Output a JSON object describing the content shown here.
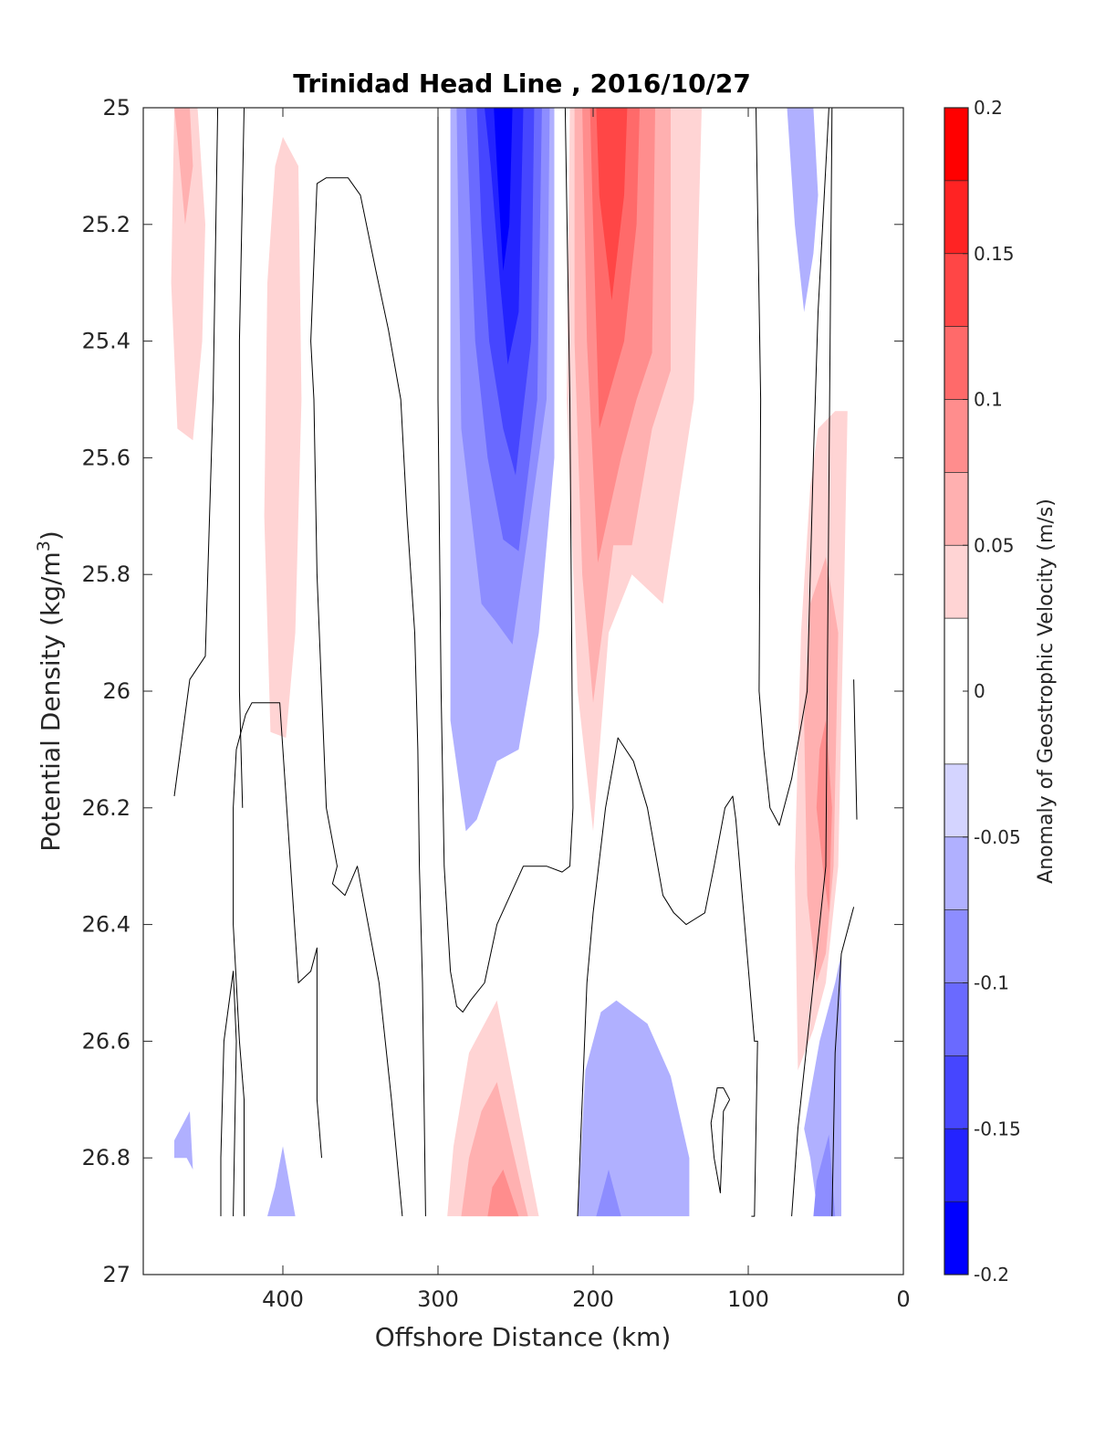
{
  "chart_data": {
    "type": "contourf",
    "title": "Trinidad Head Line , 2016/10/27",
    "xlabel": "Offshore Distance (km)",
    "ylabel_main": "Potential Density (kg/m",
    "ylabel_sup": "3",
    "ylabel_tail": ")",
    "xlim": [
      490,
      0
    ],
    "x_reversed": true,
    "ylim": [
      25,
      27
    ],
    "y_reversed": true,
    "x_ticks": [
      "400",
      "300",
      "200",
      "100",
      "0"
    ],
    "x_tick_values": [
      400,
      300,
      200,
      100,
      0
    ],
    "y_ticks": [
      "25",
      "25.2",
      "25.4",
      "25.6",
      "25.8",
      "26",
      "26.2",
      "26.4",
      "26.6",
      "26.8",
      "27"
    ],
    "y_tick_values": [
      25,
      25.2,
      25.4,
      25.6,
      25.8,
      26,
      26.2,
      26.4,
      26.6,
      26.8,
      27
    ],
    "colorbar": {
      "label": "Anomaly of Geostrophic Velocity (m/s)",
      "range": [
        -0.2,
        0.2
      ],
      "tick_labels": [
        "0.2",
        "0.15",
        "0.1",
        "0.05",
        "0",
        "-0.05",
        "-0.1",
        "-0.15",
        "-0.2"
      ],
      "tick_values": [
        0.2,
        0.15,
        0.1,
        0.05,
        0,
        -0.05,
        -0.1,
        -0.15,
        -0.2
      ],
      "levels": [
        -0.2,
        -0.175,
        -0.15,
        -0.125,
        -0.1,
        -0.075,
        -0.05,
        -0.025,
        0.025,
        0.05,
        0.075,
        0.1,
        0.125,
        0.15,
        0.175,
        0.2
      ],
      "colors": [
        "#0000ff",
        "#2323ff",
        "#4646ff",
        "#6a6aff",
        "#8d8dff",
        "#b0b0ff",
        "#d4d4ff",
        "#ffffff",
        "#ffd4d4",
        "#ffb0b0",
        "#ff8d8d",
        "#ff6a6a",
        "#ff4646",
        "#ff2323",
        "#ff0000"
      ]
    },
    "features": [
      {
        "kind": "filled",
        "level": 0.05,
        "x": [
          465,
          455,
          450,
          452,
          458,
          468,
          472,
          470
        ],
        "y": [
          25.0,
          25.0,
          25.2,
          25.4,
          25.57,
          25.55,
          25.3,
          25.0
        ]
      },
      {
        "kind": "filled",
        "level": 0.075,
        "x": [
          470,
          460,
          458,
          463,
          468
        ],
        "y": [
          25.0,
          25.0,
          25.1,
          25.2,
          25.05
        ]
      },
      {
        "kind": "filled",
        "level": 0.05,
        "x": [
          400,
          390,
          388,
          392,
          398,
          408,
          412,
          410,
          405
        ],
        "y": [
          25.05,
          25.1,
          25.5,
          25.9,
          26.08,
          26.07,
          25.7,
          25.3,
          25.1
        ]
      },
      {
        "kind": "filled",
        "level": -0.05,
        "x": [
          292,
          225,
          225,
          235,
          248,
          262,
          275,
          282,
          292
        ],
        "y": [
          25.0,
          25.0,
          25.6,
          25.9,
          26.1,
          26.12,
          26.22,
          26.24,
          26.05
        ]
      },
      {
        "kind": "filled",
        "level": -0.075,
        "x": [
          288,
          228,
          230,
          243,
          252,
          263,
          272,
          285
        ],
        "y": [
          25.0,
          25.0,
          25.5,
          25.75,
          25.92,
          25.88,
          25.85,
          25.55
        ]
      },
      {
        "kind": "filled",
        "level": -0.1,
        "x": [
          282,
          233,
          236,
          248,
          258,
          268,
          276
        ],
        "y": [
          25.0,
          25.0,
          25.5,
          25.76,
          25.74,
          25.6,
          25.4
        ]
      },
      {
        "kind": "filled",
        "level": -0.125,
        "x": [
          275,
          238,
          240,
          250,
          258,
          267,
          272
        ],
        "y": [
          25.0,
          25.0,
          25.4,
          25.63,
          25.55,
          25.4,
          25.2
        ]
      },
      {
        "kind": "filled",
        "level": -0.15,
        "x": [
          270,
          245,
          248,
          255,
          260,
          266
        ],
        "y": [
          25.0,
          25.0,
          25.35,
          25.44,
          25.3,
          25.1
        ]
      },
      {
        "kind": "filled",
        "level": -0.175,
        "x": [
          264,
          252,
          254,
          258,
          262
        ],
        "y": [
          25.0,
          25.0,
          25.2,
          25.28,
          25.1
        ]
      },
      {
        "kind": "filled",
        "level": 0.05,
        "x": [
          215,
          130,
          135,
          155,
          175,
          190,
          200,
          210,
          217
        ],
        "y": [
          25.0,
          25.0,
          25.5,
          25.85,
          25.8,
          25.9,
          26.24,
          26.0,
          25.5
        ]
      },
      {
        "kind": "filled",
        "level": 0.075,
        "x": [
          212,
          150,
          150,
          162,
          175,
          187,
          200,
          207,
          212
        ],
        "y": [
          25.0,
          25.0,
          25.45,
          25.55,
          25.75,
          25.75,
          26.02,
          25.8,
          25.4
        ]
      },
      {
        "kind": "filled",
        "level": 0.1,
        "x": [
          207,
          160,
          162,
          172,
          182,
          197,
          204
        ],
        "y": [
          25.0,
          25.0,
          25.42,
          25.5,
          25.6,
          25.78,
          25.4
        ]
      },
      {
        "kind": "filled",
        "level": 0.125,
        "x": [
          202,
          170,
          172,
          180,
          196,
          200
        ],
        "y": [
          25.0,
          25.0,
          25.2,
          25.4,
          25.55,
          25.2
        ]
      },
      {
        "kind": "filled",
        "level": 0.15,
        "x": [
          198,
          178,
          180,
          188,
          196
        ],
        "y": [
          25.0,
          25.0,
          25.15,
          25.33,
          25.15
        ]
      },
      {
        "kind": "filled",
        "level": -0.05,
        "x": [
          75,
          58,
          55,
          58,
          64,
          70
        ],
        "y": [
          25.0,
          25.0,
          25.15,
          25.25,
          25.35,
          25.2
        ]
      },
      {
        "kind": "filled",
        "level": 0.05,
        "x": [
          44,
          36,
          38,
          42,
          50,
          58,
          68,
          70,
          66,
          60,
          55
        ],
        "y": [
          25.52,
          25.52,
          25.8,
          26.3,
          26.5,
          26.58,
          26.65,
          26.3,
          25.9,
          25.65,
          25.55
        ]
      },
      {
        "kind": "filled",
        "level": 0.075,
        "x": [
          50,
          42,
          45,
          50,
          56,
          62,
          64,
          60
        ],
        "y": [
          25.77,
          25.9,
          26.3,
          26.45,
          26.5,
          26.35,
          26.05,
          25.85
        ]
      },
      {
        "kind": "filled",
        "level": 0.1,
        "x": [
          50,
          46,
          48,
          52,
          56,
          54
        ],
        "y": [
          26.05,
          26.2,
          26.38,
          26.3,
          26.2,
          26.1
        ]
      },
      {
        "kind": "filled",
        "level": 0.05,
        "x": [
          262,
          235,
          240,
          252,
          265,
          282,
          294,
          290,
          280
        ],
        "y": [
          26.53,
          26.9,
          26.9,
          26.9,
          26.9,
          26.9,
          26.9,
          26.78,
          26.62
        ]
      },
      {
        "kind": "filled",
        "level": 0.075,
        "x": [
          262,
          242,
          248,
          260,
          275,
          285,
          280,
          272
        ],
        "y": [
          26.67,
          26.9,
          26.9,
          26.9,
          26.9,
          26.9,
          26.8,
          26.72
        ]
      },
      {
        "kind": "filled",
        "level": 0.1,
        "x": [
          258,
          248,
          255,
          262,
          268,
          265
        ],
        "y": [
          26.82,
          26.9,
          26.9,
          26.9,
          26.9,
          26.85
        ]
      },
      {
        "kind": "filled",
        "level": -0.05,
        "x": [
          185,
          165,
          150,
          138,
          138,
          165,
          195,
          210,
          205,
          195
        ],
        "y": [
          26.53,
          26.57,
          26.66,
          26.8,
          26.9,
          26.9,
          26.9,
          26.9,
          26.65,
          26.55
        ]
      },
      {
        "kind": "filled",
        "level": -0.075,
        "x": [
          190,
          182,
          186,
          194,
          198
        ],
        "y": [
          26.82,
          26.9,
          26.9,
          26.9,
          26.9
        ]
      },
      {
        "kind": "filled",
        "level": -0.05,
        "x": [
          470,
          470,
          462,
          458,
          460
        ],
        "y": [
          26.77,
          26.8,
          26.8,
          26.82,
          26.72
        ]
      },
      {
        "kind": "filled",
        "level": -0.05,
        "x": [
          410,
          392,
          400,
          405
        ],
        "y": [
          26.9,
          26.9,
          26.78,
          26.85
        ]
      },
      {
        "kind": "filled",
        "level": -0.05,
        "x": [
          40,
          40,
          45,
          55,
          60,
          64,
          54,
          44
        ],
        "y": [
          26.45,
          26.9,
          26.9,
          26.9,
          26.8,
          26.75,
          26.6,
          26.5
        ]
      },
      {
        "kind": "filled",
        "level": -0.075,
        "x": [
          48,
          44,
          53,
          58,
          56
        ],
        "y": [
          26.76,
          26.9,
          26.9,
          26.9,
          26.84
        ]
      },
      {
        "kind": "contour0",
        "x": [
          470,
          460,
          450,
          445,
          442,
          440,
          438
        ],
        "y": [
          26.18,
          25.98,
          25.94,
          25.5,
          25.0,
          25.0,
          25.0
        ]
      },
      {
        "kind": "contour0",
        "x": [
          440,
          440,
          438,
          432,
          430,
          432
        ],
        "y": [
          26.9,
          26.8,
          26.6,
          26.48,
          26.6,
          26.9
        ]
      },
      {
        "kind": "contour0",
        "x": [
          425,
          425,
          428,
          432,
          432,
          430,
          424,
          420,
          402,
          390,
          382,
          378,
          378,
          375
        ],
        "y": [
          26.9,
          26.7,
          26.6,
          26.4,
          26.2,
          26.1,
          26.04,
          26.02,
          26.02,
          26.5,
          26.48,
          26.44,
          26.7,
          26.8
        ]
      },
      {
        "kind": "contour0",
        "x": [
          425,
          428,
          428,
          426
        ],
        "y": [
          25.0,
          25.4,
          26.0,
          26.2
        ]
      },
      {
        "kind": "contour0",
        "x": [
          323,
          330,
          338,
          352,
          360,
          368,
          365,
          372,
          378,
          380,
          382,
          378,
          372,
          358,
          350,
          340,
          332,
          324,
          320,
          315,
          313,
          312,
          310,
          308
        ],
        "y": [
          26.9,
          26.7,
          26.5,
          26.3,
          26.35,
          26.33,
          26.3,
          26.2,
          25.8,
          25.5,
          25.4,
          25.13,
          25.12,
          25.12,
          25.15,
          25.28,
          25.38,
          25.5,
          25.7,
          25.9,
          26.1,
          26.3,
          26.5,
          26.9
        ]
      },
      {
        "kind": "contour0",
        "x": [
          300,
          300,
          298,
          296,
          292,
          288,
          284,
          279,
          270,
          262,
          245,
          230,
          220,
          215,
          213,
          215,
          218,
          225
        ],
        "y": [
          25.0,
          25.5,
          26.0,
          26.3,
          26.48,
          26.54,
          26.55,
          26.53,
          26.5,
          26.4,
          26.3,
          26.3,
          26.31,
          26.3,
          26.2,
          25.5,
          25.0,
          25.0
        ]
      },
      {
        "kind": "contour0",
        "x": [
          210,
          204,
          200,
          192,
          184,
          174,
          165,
          155,
          148,
          140,
          128,
          122,
          115,
          110,
          108,
          96,
          94,
          96,
          98
        ],
        "y": [
          26.9,
          26.5,
          26.38,
          26.2,
          26.08,
          26.12,
          26.2,
          26.35,
          26.38,
          26.4,
          26.38,
          26.3,
          26.2,
          26.18,
          26.22,
          26.6,
          26.6,
          26.9,
          26.9
        ]
      },
      {
        "kind": "contour0",
        "x": [
          112,
          116,
          118,
          122,
          124,
          120,
          116,
          112
        ],
        "y": [
          26.7,
          26.72,
          26.86,
          26.8,
          26.74,
          26.68,
          26.68,
          26.7
        ]
      },
      {
        "kind": "contour0",
        "x": [
          95,
          92,
          93,
          90,
          86,
          80,
          72,
          62,
          58,
          55,
          48,
          46,
          50,
          60,
          68,
          72
        ],
        "y": [
          25.0,
          25.5,
          26.0,
          26.1,
          26.2,
          26.23,
          26.15,
          26.0,
          25.6,
          25.35,
          25.0,
          25.0,
          26.3,
          26.55,
          26.75,
          26.9
        ]
      },
      {
        "kind": "contour0",
        "x": [
          46,
          44,
          40,
          32
        ],
        "y": [
          26.9,
          26.62,
          26.45,
          26.37
        ]
      },
      {
        "kind": "contour0",
        "x": [
          32,
          31,
          30
        ],
        "y": [
          25.98,
          26.1,
          26.22
        ]
      }
    ]
  }
}
